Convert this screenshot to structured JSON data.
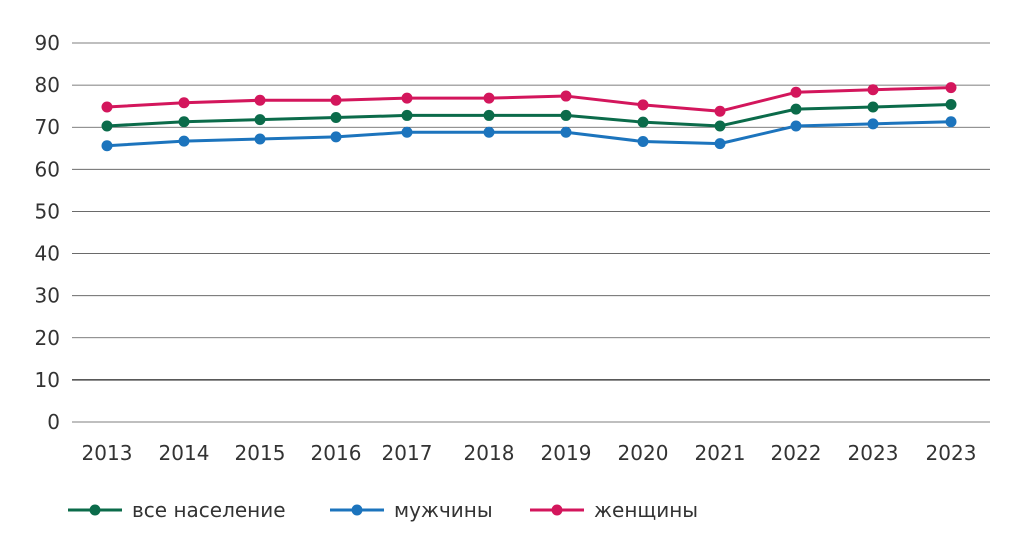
{
  "chart_data": {
    "type": "line",
    "categories": [
      "2013",
      "2014",
      "2015",
      "2016",
      "2017",
      "2018",
      "2019",
      "2020",
      "2021",
      "2022",
      "2023",
      "2023"
    ],
    "ylim": [
      0,
      90
    ],
    "yticks": [
      "0",
      "10",
      "20",
      "30",
      "40",
      "50",
      "60",
      "70",
      "80",
      "90"
    ],
    "grid": true,
    "legend_position": "bottom-left",
    "series": [
      {
        "name": "все население",
        "color": "#0b6b4a",
        "values": [
          70.3,
          71.3,
          71.8,
          72.3,
          72.8,
          72.8,
          72.8,
          71.2,
          70.3,
          74.3,
          74.8,
          75.4
        ]
      },
      {
        "name": "мужчины",
        "color": "#1c74bd",
        "values": [
          65.6,
          66.7,
          67.2,
          67.7,
          68.8,
          68.8,
          68.8,
          66.6,
          66.1,
          70.3,
          70.8,
          71.3
        ]
      },
      {
        "name": "женщины",
        "color": "#d3165c",
        "values": [
          74.8,
          75.8,
          76.4,
          76.4,
          76.9,
          76.9,
          77.4,
          75.3,
          73.8,
          78.3,
          78.9,
          79.4
        ]
      }
    ]
  }
}
